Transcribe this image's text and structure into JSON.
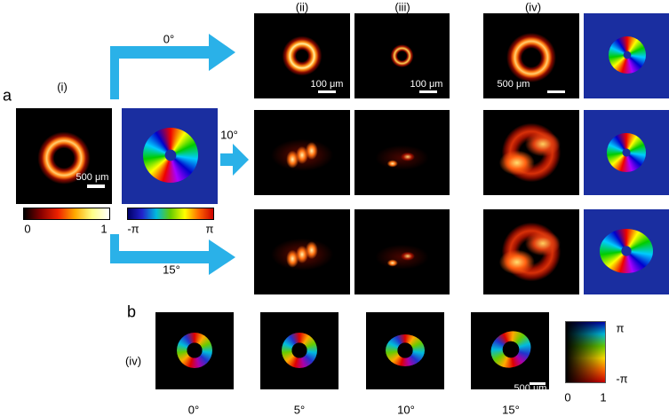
{
  "panel_a": {
    "label": "a",
    "column_labels": [
      "(i)",
      "(ii)",
      "(iii)",
      "(iv)"
    ],
    "angles": [
      "0°",
      "10°",
      "15°"
    ],
    "scale_bars": {
      "i": "500 μm",
      "ii": "100 μm",
      "iii": "100 μm",
      "iv": "500 μm"
    },
    "intensity_colorbar": {
      "min": "0",
      "max": "1"
    },
    "phase_colorbar": {
      "min": "-π",
      "max": "π"
    }
  },
  "panel_b": {
    "label": "b",
    "row_label": "(iv)",
    "angles": [
      "0°",
      "5°",
      "10°",
      "15°"
    ],
    "scale_bar": "500 μm",
    "colorbar": {
      "phase_max": "π",
      "phase_min": "-π",
      "amp_min": "0",
      "amp_max": "1"
    }
  }
}
